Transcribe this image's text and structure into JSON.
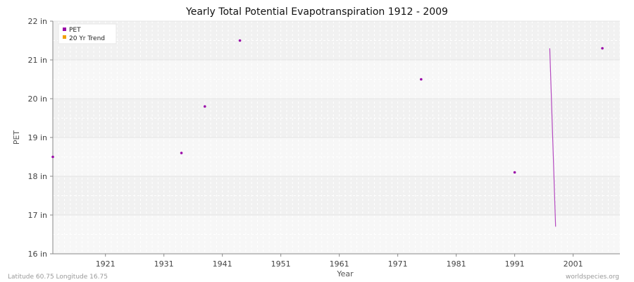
{
  "chart_data": {
    "type": "scatter",
    "title": "Yearly Total Potential Evapotranspiration 1912 - 2009",
    "xlabel": "Year",
    "ylabel": "PET",
    "xlim": [
      1912,
      2009
    ],
    "ylim": [
      16,
      22
    ],
    "x_ticks": [
      1921,
      1931,
      1941,
      1951,
      1961,
      1971,
      1981,
      1991,
      2001
    ],
    "y_ticks": [
      16,
      17,
      18,
      19,
      20,
      21,
      22
    ],
    "y_tick_labels": [
      "16 in",
      "17 in",
      "18 in",
      "19 in",
      "20 in",
      "21 in",
      "22 in"
    ],
    "grid": true,
    "legend_position": "top-left",
    "series": [
      {
        "name": "PET",
        "color": "#9a0aa8",
        "x": [
          1912,
          1934,
          1938,
          1944,
          1975,
          1991,
          2006
        ],
        "y": [
          18.5,
          18.6,
          19.8,
          21.5,
          20.5,
          18.1,
          21.3
        ]
      },
      {
        "name": "20 Yr Trend",
        "color": "#f0a000",
        "line_color": "#b44ac0",
        "x": [
          1997,
          1998
        ],
        "y": [
          21.3,
          16.7
        ]
      }
    ]
  },
  "footer": {
    "left": "Latitude 60.75 Longitude 16.75",
    "right": "worldspecies.org"
  }
}
